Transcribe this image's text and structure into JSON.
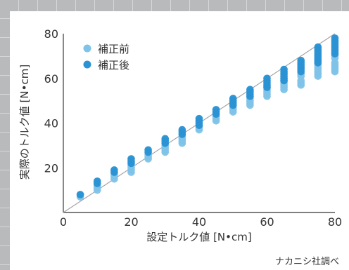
{
  "chart_data": {
    "type": "scatter",
    "title": "",
    "xlabel": "設定トルク値 [N•cm]",
    "ylabel": "実際のトルク値 [N•cm]",
    "xlim": [
      0,
      80
    ],
    "ylim": [
      0,
      80
    ],
    "x_ticks": [
      "0",
      "20",
      "40",
      "60",
      "80"
    ],
    "y_ticks": [
      "20",
      "40",
      "60",
      "80"
    ],
    "legend_position": "top-left",
    "grid": false,
    "reference_line": {
      "from": [
        0,
        0
      ],
      "to": [
        80,
        80
      ],
      "color": "#a3a3a3"
    },
    "series": [
      {
        "name": "補正前",
        "color": "#7fc3e8",
        "points": [
          {
            "x": 5,
            "y": [
              7,
              8
            ]
          },
          {
            "x": 10,
            "y": [
              10,
              11,
              12
            ]
          },
          {
            "x": 15,
            "y": [
              15,
              16,
              17
            ]
          },
          {
            "x": 20,
            "y": [
              18,
              19,
              20,
              21
            ]
          },
          {
            "x": 25,
            "y": [
              24,
              25,
              26
            ]
          },
          {
            "x": 30,
            "y": [
              27,
              28,
              29,
              30
            ]
          },
          {
            "x": 35,
            "y": [
              31,
              32,
              33,
              34
            ]
          },
          {
            "x": 40,
            "y": [
              37,
              38,
              39
            ]
          },
          {
            "x": 45,
            "y": [
              41,
              42,
              43
            ]
          },
          {
            "x": 50,
            "y": [
              45,
              46,
              47,
              48
            ]
          },
          {
            "x": 55,
            "y": [
              48,
              49,
              50,
              51,
              52
            ]
          },
          {
            "x": 60,
            "y": [
              52,
              53,
              54,
              55,
              56
            ]
          },
          {
            "x": 65,
            "y": [
              55,
              56,
              57,
              58,
              59,
              60
            ]
          },
          {
            "x": 70,
            "y": [
              57,
              58,
              59,
              61,
              62
            ]
          },
          {
            "x": 75,
            "y": [
              61,
              62,
              63,
              64,
              65,
              66,
              67,
              68
            ]
          },
          {
            "x": 80,
            "y": [
              63,
              64,
              65,
              66,
              67,
              69,
              70,
              71
            ]
          }
        ]
      },
      {
        "name": "補正後",
        "color": "#2b93d3",
        "points": [
          {
            "x": 5,
            "y": [
              8
            ]
          },
          {
            "x": 10,
            "y": [
              13,
              14
            ]
          },
          {
            "x": 15,
            "y": [
              18,
              19
            ]
          },
          {
            "x": 20,
            "y": [
              22,
              23,
              24
            ]
          },
          {
            "x": 25,
            "y": [
              27,
              28
            ]
          },
          {
            "x": 30,
            "y": [
              31,
              32,
              33
            ]
          },
          {
            "x": 35,
            "y": [
              35,
              36,
              37
            ]
          },
          {
            "x": 40,
            "y": [
              39,
              40,
              41,
              42
            ]
          },
          {
            "x": 45,
            "y": [
              44,
              45,
              46
            ]
          },
          {
            "x": 50,
            "y": [
              48,
              49,
              50,
              51
            ]
          },
          {
            "x": 55,
            "y": [
              52,
              53,
              54,
              55
            ]
          },
          {
            "x": 60,
            "y": [
              56,
              57,
              58,
              59,
              60
            ]
          },
          {
            "x": 65,
            "y": [
              59,
              60,
              61,
              62,
              63,
              64
            ]
          },
          {
            "x": 70,
            "y": [
              63,
              64,
              65,
              66,
              67,
              68
            ]
          },
          {
            "x": 75,
            "y": [
              67,
              68,
              69,
              70,
              71,
              72,
              73,
              74
            ]
          },
          {
            "x": 80,
            "y": [
              71,
              72,
              73,
              74,
              75,
              76,
              77,
              78
            ]
          }
        ]
      }
    ],
    "source": "ナカニシ社調べ"
  }
}
